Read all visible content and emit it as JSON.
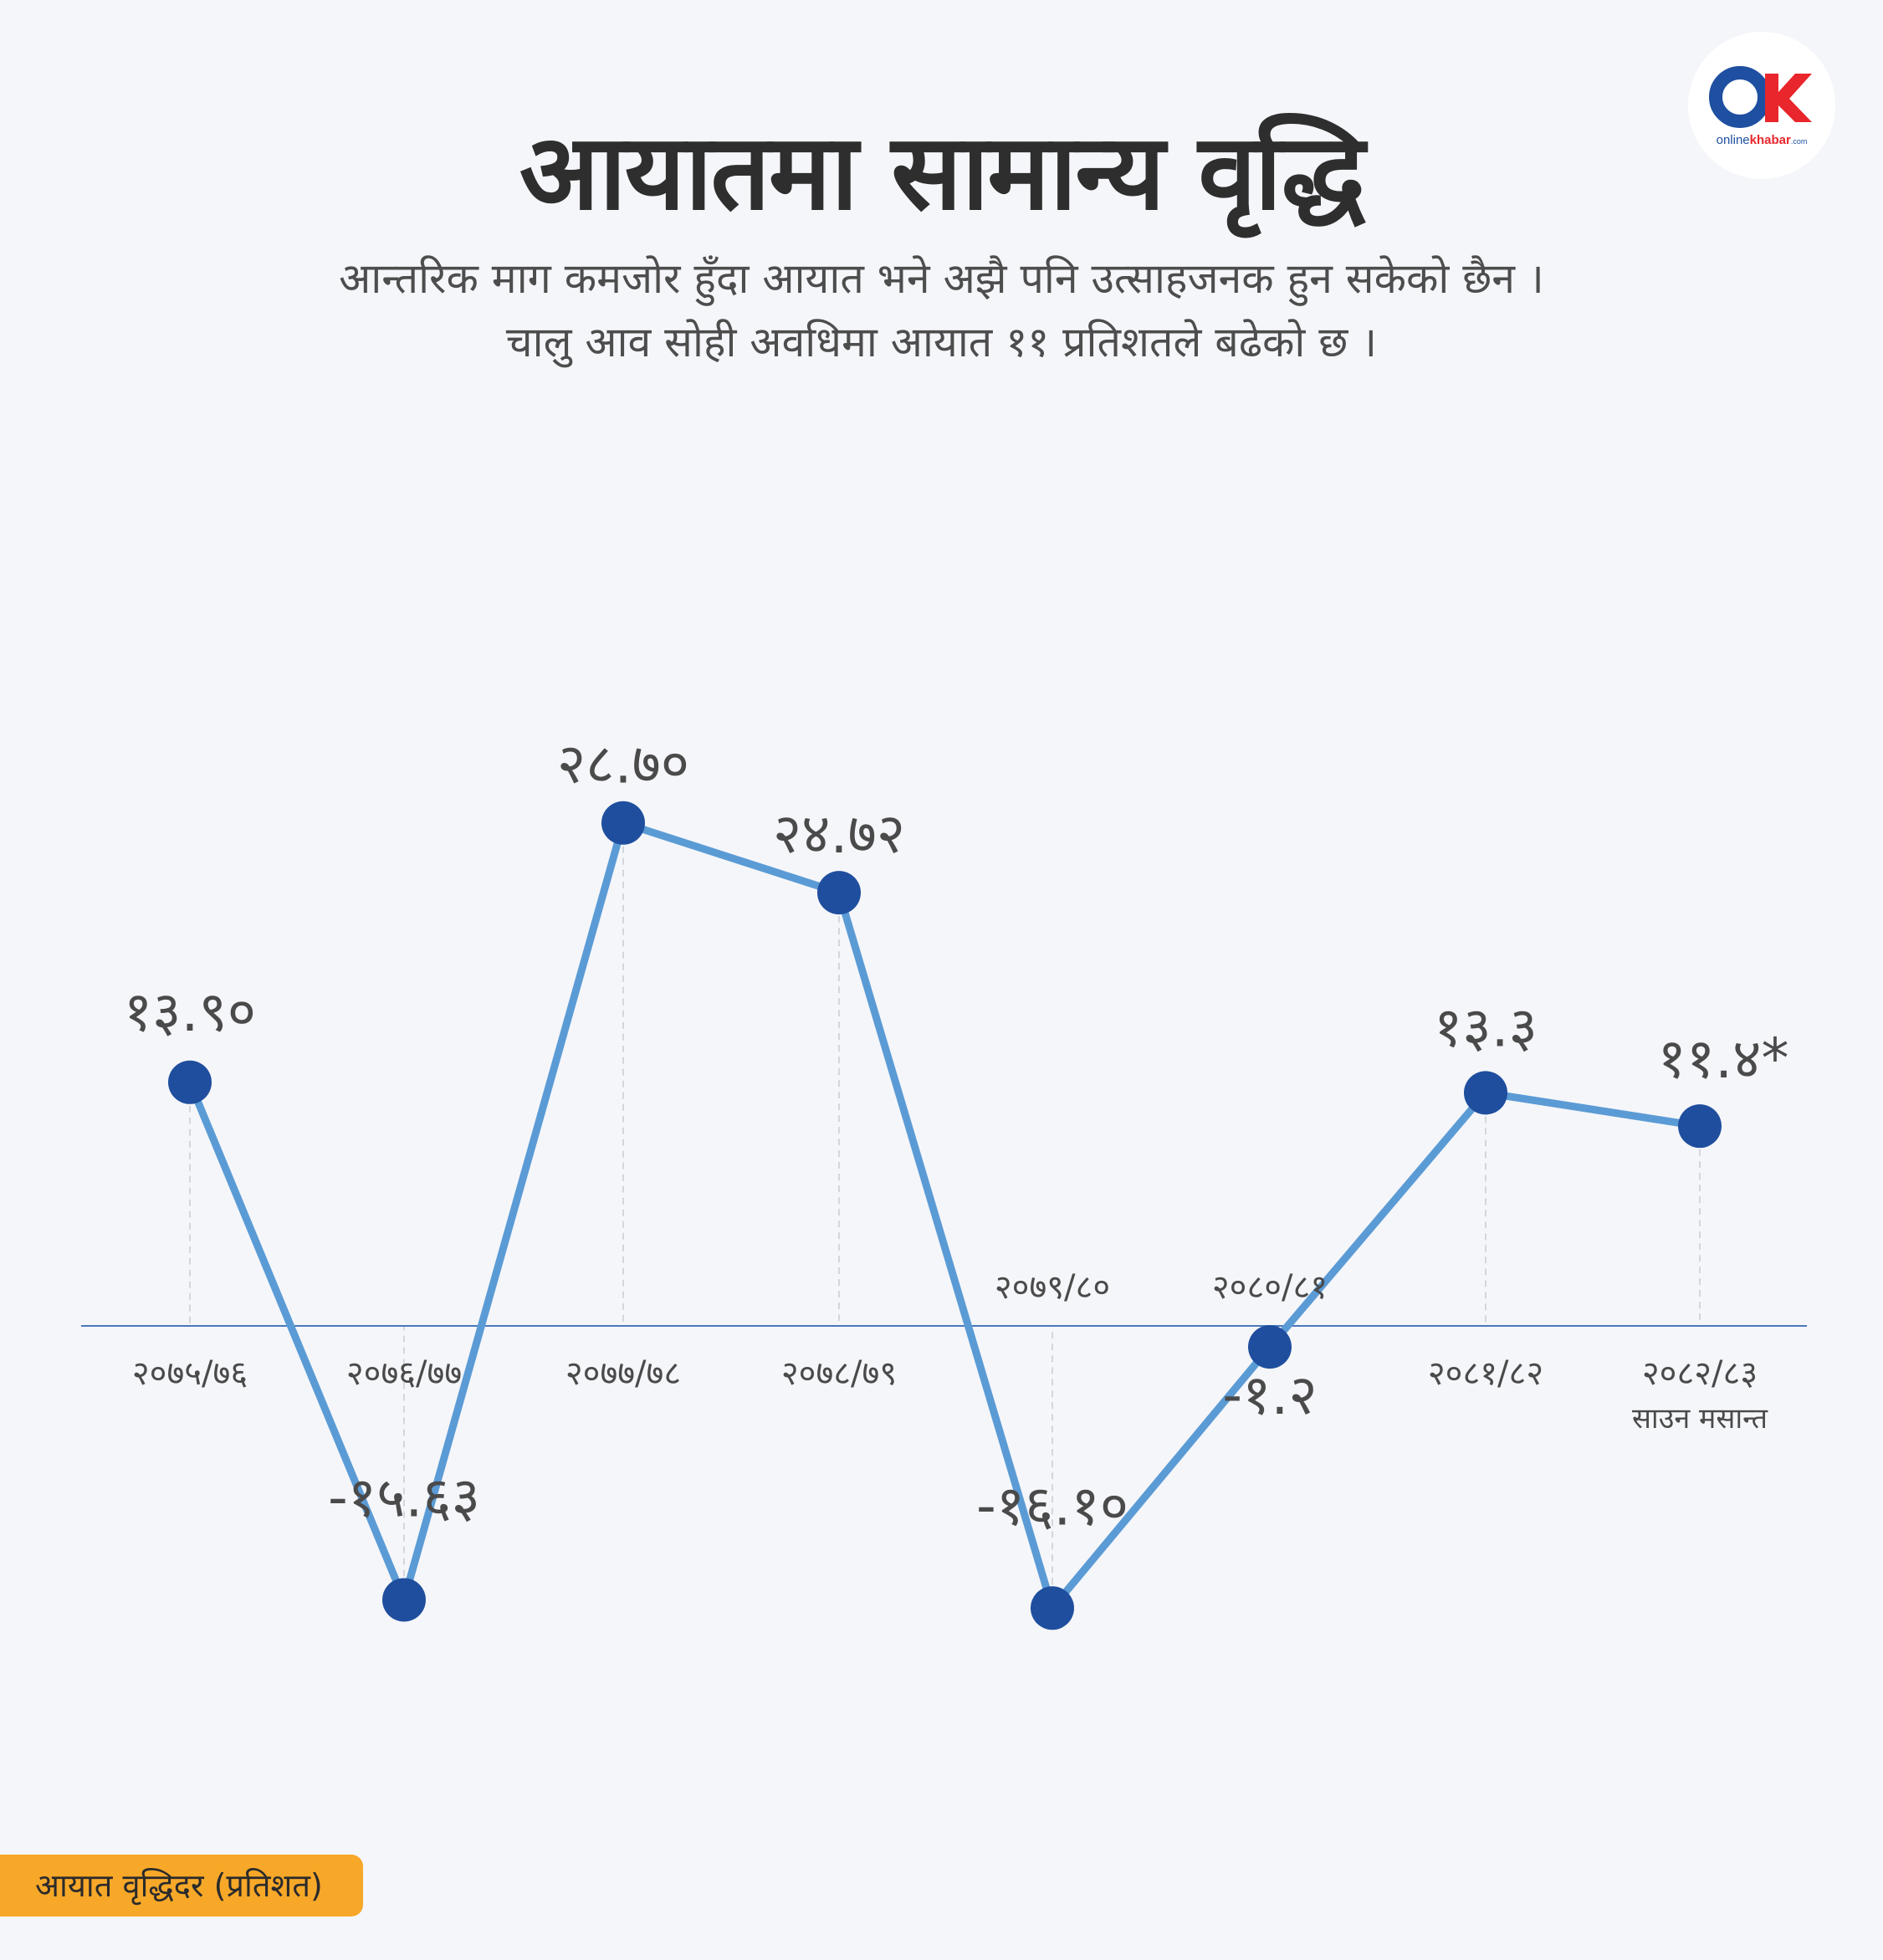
{
  "title": "आयातमा सामान्य वृद्धि",
  "subtitle": {
    "line1": "आन्तरिक माग कमजोर हुँदा आयात भने अझै पनि उत्साहजनक हुन सकेको छैन ।",
    "line2": "चालु आव सोही अवधिमा आयात ११ प्रतिशतले बढेको छ ।"
  },
  "logo": {
    "text_prefix": "online",
    "text_brand": "khabar",
    "text_suffix": ".com",
    "colors": {
      "circle": "#1e4fa0",
      "k": "#e8262b"
    }
  },
  "legend": {
    "label": "आयात वृद्धिदर  (प्रतिशत)",
    "color": "#f7a829"
  },
  "colors": {
    "line": "#5b9bd5",
    "marker": "#1f4e9e",
    "axis": "#4a78b8",
    "grid": "#d3d6dc",
    "label": "#4a4a4a"
  },
  "chart_data": {
    "type": "line",
    "title": "आयातमा सामान्य वृद्धि",
    "ylabel": "आयात वृद्धिदर  (प्रतिशत)",
    "grid": false,
    "categories": [
      "२०७५/७६",
      "२०७६/७७",
      "२०७७/७८",
      "२०७८/७९",
      "२०७९/८०",
      "२०८०/८१",
      "२०८१/८२",
      "२०८२/८३"
    ],
    "category_notes": [
      "",
      "",
      "",
      "",
      "",
      "",
      "",
      "साउन मसान्त"
    ],
    "values": [
      13.9,
      -15.63,
      28.7,
      24.72,
      -16.1,
      -1.2,
      13.3,
      11.4
    ],
    "value_labels": [
      "१३.९०",
      "-१५.६३",
      "२८.७०",
      "२४.७२",
      "-१६.१०",
      "-१.२",
      "१३.३",
      "११.४*"
    ],
    "ylim": [
      -16.1,
      28.7
    ]
  }
}
